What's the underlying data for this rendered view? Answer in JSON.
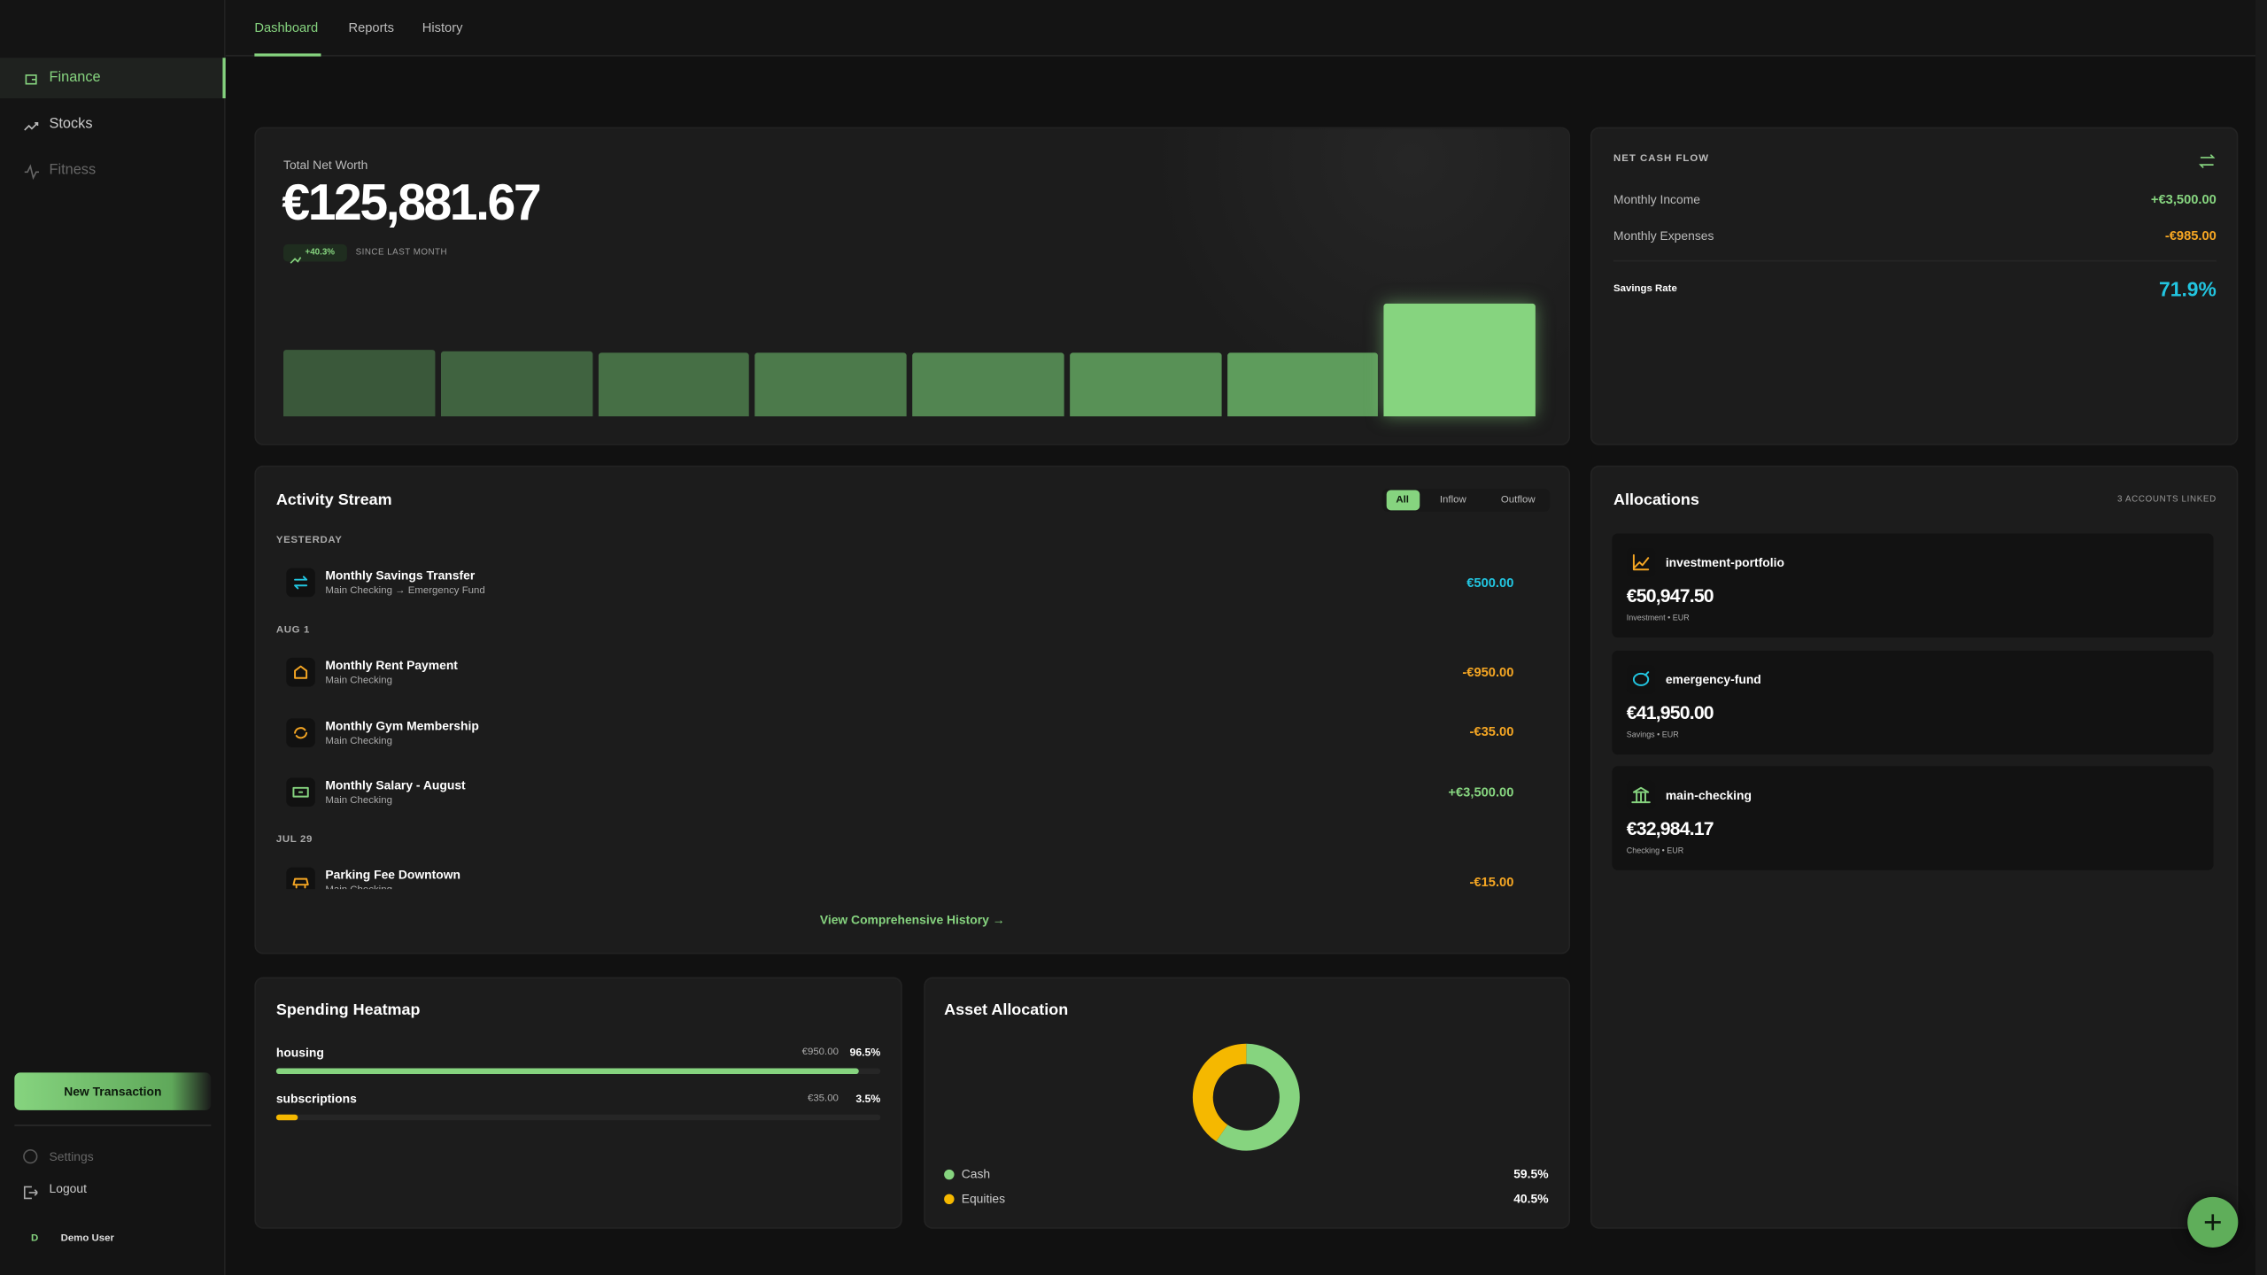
{
  "nav": {
    "tabs": [
      "Dashboard",
      "Reports",
      "History"
    ]
  },
  "sidebar": {
    "items": [
      "Finance",
      "Stocks",
      "Fitness"
    ],
    "new_transaction": "New Transaction",
    "settings": "Settings",
    "logout": "Logout",
    "user_initial": "D",
    "user_name": "Demo User"
  },
  "net_worth": {
    "label": "Total Net Worth",
    "value": "€125,881.67",
    "change": "+40.3%",
    "change_note": "SINCE LAST MONTH",
    "trend": [
      74,
      73,
      71,
      71,
      71,
      71,
      71,
      126
    ]
  },
  "cash_flow": {
    "title": "NET CASH FLOW",
    "rows": [
      {
        "label": "Monthly Income",
        "value": "+€3,500.00",
        "color": "#86d47f"
      },
      {
        "label": "Monthly Expenses",
        "value": "-€985.00",
        "color": "#f5a623"
      }
    ],
    "savings_label": "Savings Rate",
    "savings_value": "71.9%",
    "savings_color": "#22c5e0"
  },
  "activity": {
    "title": "Activity Stream",
    "filters": [
      "All",
      "Inflow",
      "Outflow"
    ],
    "groups": [
      {
        "label": "YESTERDAY",
        "items": [
          {
            "title": "Monthly Savings Transfer",
            "subtitle": "Main Checking → Emergency Fund",
            "amount": "€500.00",
            "color": "#22c5e0"
          }
        ]
      },
      {
        "label": "AUG 1",
        "items": [
          {
            "title": "Monthly Rent Payment",
            "subtitle": "Main Checking",
            "amount": "-€950.00",
            "color": "#f5a623"
          },
          {
            "title": "Monthly Gym Membership",
            "subtitle": "Main Checking",
            "amount": "-€35.00",
            "color": "#f5a623"
          },
          {
            "title": "Monthly Salary - August",
            "subtitle": "Main Checking",
            "amount": "+€3,500.00",
            "color": "#86d47f"
          }
        ]
      },
      {
        "label": "JUL 29",
        "items": [
          {
            "title": "Parking Fee Downtown",
            "subtitle": "Main Checking",
            "amount": "-€15.00",
            "color": "#f5a623"
          }
        ]
      }
    ],
    "link": "View Comprehensive History →"
  },
  "allocations": {
    "title": "Allocations",
    "note": "3 ACCOUNTS LINKED",
    "accounts": [
      {
        "name": "investment-portfolio",
        "balance": "€50,947.50",
        "meta": "Investment • EUR",
        "color": "#f5a623"
      },
      {
        "name": "emergency-fund",
        "balance": "€41,950.00",
        "meta": "Savings • EUR",
        "color": "#22c5e0"
      },
      {
        "name": "main-checking",
        "balance": "€32,984.17",
        "meta": "Checking • EUR",
        "color": "#86d47f"
      }
    ]
  },
  "heatmap": {
    "title": "Spending Heatmap",
    "items": [
      {
        "name": "housing",
        "amount": "€950.00",
        "share": 96.5,
        "share_label": "96.5%",
        "color": "#86d47f"
      },
      {
        "name": "subscriptions",
        "amount": "€35.00",
        "share": 3.5,
        "share_label": "3.5%",
        "color": "#f5b800"
      }
    ]
  },
  "asset_allocation": {
    "title": "Asset Allocation",
    "slices": [
      {
        "name": "Cash",
        "value": 59.5,
        "label": "59.5%",
        "color": "#86d47f"
      },
      {
        "name": "Equities",
        "value": 40.5,
        "label": "40.5%",
        "color": "#f5b800"
      }
    ]
  }
}
